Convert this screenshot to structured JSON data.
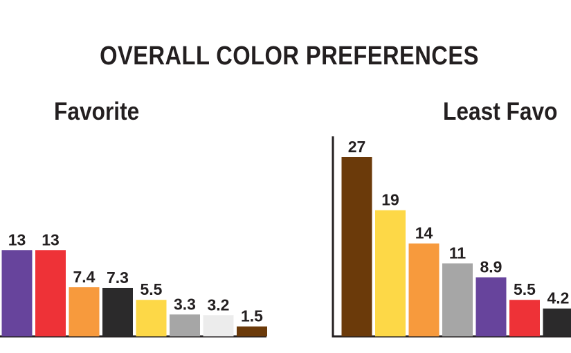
{
  "title": "OVERALL COLOR PREFERENCES",
  "chart_data": [
    {
      "type": "bar",
      "title": "Favorite",
      "values": [
        13,
        13,
        7.4,
        7.3,
        5.5,
        3.3,
        3.2,
        1.5
      ],
      "value_labels": [
        "13",
        "13",
        "7.4",
        "7.3",
        "5.5",
        "3.3",
        "3.2",
        "1.5"
      ],
      "colors": [
        "#67449c",
        "#ee3237",
        "#f79a3d",
        "#2b2a2b",
        "#fdd847",
        "#a6a6a6",
        "#ececec",
        "#6b3a0a"
      ],
      "xlabel": "",
      "ylabel": "",
      "ylim": [
        0,
        27
      ],
      "grid": false
    },
    {
      "type": "bar",
      "title": "Least Favo",
      "values": [
        27,
        19,
        14,
        11,
        8.9,
        5.5,
        4.2
      ],
      "value_labels": [
        "27",
        "19",
        "14",
        "11",
        "8.9",
        "5.5",
        "4.2"
      ],
      "colors": [
        "#6b3a0a",
        "#fdd847",
        "#f79a3d",
        "#a6a6a6",
        "#67449c",
        "#ee3237",
        "#2b2a2b"
      ],
      "xlabel": "",
      "ylabel": "",
      "ylim": [
        0,
        27
      ],
      "grid": false
    }
  ]
}
